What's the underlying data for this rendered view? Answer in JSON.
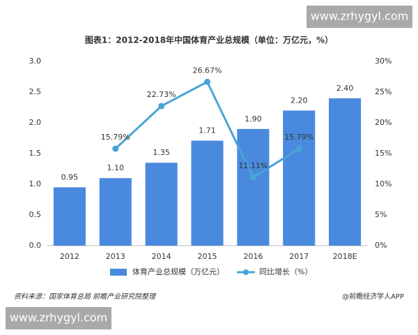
{
  "watermark_top": "www.zrhygyl.com",
  "watermark_bottom": "www.zrhygyl.com",
  "chart_data": {
    "type": "bar",
    "title": "图表1：2012-2018年中国体育产业总规模（单位：万亿元，%）",
    "categories": [
      "2012",
      "2013",
      "2014",
      "2015",
      "2016",
      "2017",
      "2018E"
    ],
    "series": [
      {
        "name": "体育产业总规模（万亿元）",
        "type": "bar",
        "color": "#4a8ade",
        "values": [
          0.95,
          1.1,
          1.35,
          1.71,
          1.9,
          2.2,
          2.4
        ],
        "value_labels": [
          "0.95",
          "1.10",
          "1.35",
          "1.71",
          "1.90",
          "2.20",
          "2.40"
        ]
      },
      {
        "name": "同比增长（%）",
        "type": "line",
        "axis": "y2",
        "color": "#4aa3d6",
        "values": [
          null,
          15.79,
          22.73,
          26.67,
          11.11,
          15.79,
          null
        ],
        "value_labels": [
          null,
          "15.79%",
          "22.73%",
          "26.67%",
          "11.11%",
          "15.79%",
          null
        ]
      }
    ],
    "ylim": [
      0,
      3
    ],
    "yticks": [
      {
        "value": 0,
        "label": "0.0"
      },
      {
        "value": 0.5,
        "label": "0.5"
      },
      {
        "value": 1,
        "label": "1.0"
      },
      {
        "value": 1.5,
        "label": "1.5"
      },
      {
        "value": 2,
        "label": "2.0"
      },
      {
        "value": 2.5,
        "label": "2.5"
      },
      {
        "value": 3,
        "label": "3.0"
      }
    ],
    "y2lim": [
      0,
      30
    ],
    "y2ticks": [
      {
        "value": 0,
        "label": "0%"
      },
      {
        "value": 5,
        "label": "5%"
      },
      {
        "value": 10,
        "label": "10%"
      },
      {
        "value": 15,
        "label": "15%"
      },
      {
        "value": 20,
        "label": "20%"
      },
      {
        "value": 25,
        "label": "25%"
      },
      {
        "value": 30,
        "label": "30%"
      }
    ],
    "grid": false,
    "source": "资料来源：国家体育总局 前瞻产业研究院整理",
    "credit": "@前瞻经济学人APP"
  }
}
